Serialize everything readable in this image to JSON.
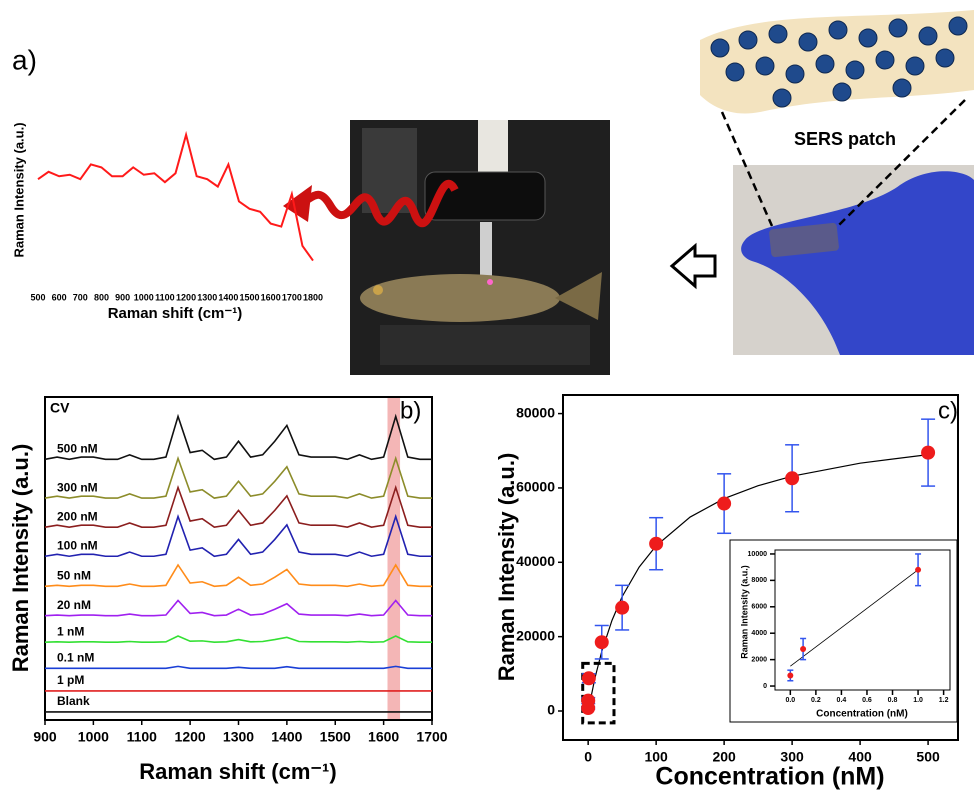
{
  "chart_data": [
    {
      "type": "line",
      "panel_label": "a)",
      "ylabel": "Raman Intensity (a.u.)",
      "xlabel": "Raman shift (cm⁻¹)",
      "xlim": [
        500,
        1800
      ],
      "xticks": [
        500,
        600,
        700,
        800,
        900,
        1000,
        1100,
        1200,
        1300,
        1400,
        1500,
        1600,
        1700,
        1800
      ],
      "ylim": [
        0,
        100
      ],
      "x": [
        500,
        550,
        600,
        650,
        700,
        750,
        800,
        850,
        900,
        950,
        1000,
        1050,
        1100,
        1150,
        1200,
        1250,
        1300,
        1350,
        1400,
        1450,
        1500,
        1550,
        1600,
        1650,
        1700,
        1750,
        1800
      ],
      "series": [
        {
          "color": "#ff1a1a",
          "values": [
            60,
            65,
            62,
            63,
            60,
            70,
            68,
            62,
            62,
            68,
            63,
            64,
            58,
            64,
            90,
            62,
            60,
            55,
            70,
            45,
            40,
            38,
            30,
            28,
            50,
            15,
            5
          ]
        }
      ]
    },
    {
      "type": "line",
      "panel_label": "b)",
      "annotation": "CV",
      "ylabel": "Raman Intensity (a.u.)",
      "xlabel": "Raman shift (cm⁻¹)",
      "xlim": [
        900,
        1700
      ],
      "xticks": [
        900,
        1000,
        1100,
        1200,
        1300,
        1400,
        1500,
        1600,
        1700
      ],
      "ylim": [
        0,
        100
      ],
      "highlight": [
        1608,
        1634
      ],
      "highlight_color": "#f4b6b6",
      "x": [
        900,
        925,
        950,
        975,
        1000,
        1025,
        1050,
        1075,
        1100,
        1125,
        1150,
        1175,
        1200,
        1225,
        1250,
        1275,
        1300,
        1325,
        1350,
        1375,
        1400,
        1425,
        1450,
        1475,
        1500,
        1525,
        1550,
        1575,
        1600,
        1625,
        1650,
        1675,
        1700
      ],
      "series": [
        {
          "name": "500 nM",
          "color": "#111111",
          "values": [
            80.7,
            81.4,
            80.7,
            81.4,
            81.4,
            80.7,
            80.7,
            82.1,
            80.7,
            80.7,
            81.4,
            94,
            82.8,
            83.5,
            80.7,
            81.4,
            86.3,
            81.4,
            82.1,
            86.3,
            91.2,
            82.1,
            81.4,
            81.4,
            81.4,
            80.7,
            82.1,
            80.7,
            81.4,
            94,
            81.4,
            80.7,
            80.7
          ]
        },
        {
          "name": "300 nM",
          "color": "#8c8c2a",
          "values": [
            68.7,
            69.3,
            68.7,
            69.3,
            69.3,
            68.7,
            68.7,
            70,
            68.7,
            68.7,
            69.3,
            81,
            70.6,
            71.3,
            68.7,
            69.3,
            73.9,
            69.3,
            70,
            73.9,
            78.4,
            70,
            69.3,
            69.3,
            69.3,
            68.7,
            70,
            68.7,
            69.3,
            81,
            69.3,
            68.7,
            68.7
          ]
        },
        {
          "name": "200 nM",
          "color": "#8b1e1e",
          "values": [
            59.7,
            60.3,
            59.7,
            60.3,
            60.3,
            59.7,
            59.7,
            61,
            59.7,
            59.7,
            60.3,
            72,
            61.6,
            62.3,
            59.7,
            60.3,
            64.9,
            60.3,
            61,
            64.9,
            69.4,
            61,
            60.3,
            60.3,
            60.3,
            59.7,
            61,
            59.7,
            60.3,
            72,
            60.3,
            59.7,
            59.7
          ]
        },
        {
          "name": "100 nM",
          "color": "#2222b0",
          "values": [
            50.7,
            51.3,
            50.7,
            51.3,
            51.3,
            50.7,
            50.7,
            52,
            50.7,
            50.7,
            51.3,
            63,
            52.6,
            53.3,
            50.7,
            51.3,
            55.9,
            51.3,
            52,
            55.9,
            60.4,
            52,
            51.3,
            51.3,
            51.3,
            50.7,
            52,
            50.7,
            51.3,
            63,
            51.3,
            50.7,
            50.7
          ]
        },
        {
          "name": "50 nM",
          "color": "#ff8c1a",
          "values": [
            41.4,
            41.7,
            41.4,
            41.7,
            41.7,
            41.4,
            41.4,
            42.1,
            41.4,
            41.4,
            41.7,
            48,
            42.4,
            42.8,
            41.4,
            41.7,
            44.2,
            41.7,
            42.1,
            44.2,
            46.6,
            42.1,
            41.7,
            41.7,
            41.7,
            41.4,
            42.1,
            41.4,
            41.7,
            48,
            41.7,
            41.4,
            41.4
          ]
        },
        {
          "name": "20 nM",
          "color": "#a020f0",
          "values": [
            32.3,
            32.5,
            32.3,
            32.5,
            32.5,
            32.3,
            32.3,
            32.8,
            32.3,
            32.3,
            32.5,
            37,
            33,
            33.3,
            32.3,
            32.5,
            34.3,
            32.5,
            32.8,
            34.3,
            36,
            32.8,
            32.5,
            32.5,
            32.5,
            32.3,
            32.8,
            32.3,
            32.5,
            37,
            32.5,
            32.3,
            32.3
          ]
        },
        {
          "name": "1 nM",
          "color": "#33e033",
          "values": [
            24.1,
            24.2,
            24.1,
            24.2,
            24.2,
            24.1,
            24.1,
            24.3,
            24.1,
            24.1,
            24.2,
            26,
            24.4,
            24.5,
            24.1,
            24.2,
            24.9,
            24.2,
            24.3,
            24.9,
            25.6,
            24.3,
            24.2,
            24.2,
            24.2,
            24.1,
            24.3,
            24.1,
            24.2,
            26,
            24.2,
            24.1,
            24.1
          ]
        },
        {
          "name": "0.1 nM",
          "color": "#1a3fd6",
          "values": [
            16,
            16,
            16,
            16,
            16,
            16,
            16,
            16,
            16,
            16,
            16,
            16.6,
            16,
            16,
            16,
            16,
            16.3,
            16,
            16,
            16,
            16.5,
            16,
            16,
            16,
            16,
            16,
            16,
            16,
            16,
            16.6,
            16,
            16,
            16
          ]
        },
        {
          "name": "1 pM",
          "color": "#e02020",
          "values": [
            9,
            9,
            9,
            9,
            9,
            9,
            9,
            9,
            9,
            9,
            9,
            9,
            9,
            9,
            9,
            9,
            9,
            9,
            9,
            9,
            9,
            9,
            9,
            9,
            9,
            9,
            9,
            9,
            9,
            9,
            9,
            9,
            9
          ]
        },
        {
          "name": "Blank",
          "color": "#111111",
          "values": [
            2.5,
            2.5,
            2.5,
            2.5,
            2.5,
            2.5,
            2.5,
            2.5,
            2.5,
            2.5,
            2.5,
            2.5,
            2.5,
            2.5,
            2.5,
            2.5,
            2.5,
            2.5,
            2.5,
            2.5,
            2.5,
            2.5,
            2.5,
            2.5,
            2.5,
            2.5,
            2.5,
            2.5,
            2.5,
            2.5,
            2.5,
            2.5,
            2.5
          ]
        }
      ]
    },
    {
      "type": "scatter",
      "panel_label": "c)",
      "ylabel": "Raman Intensity (a.u.)",
      "xlabel": "Concentration (nM)",
      "xlim": [
        -37,
        544
      ],
      "xticks": [
        0,
        100,
        200,
        300,
        400,
        500
      ],
      "ylim": [
        -7800,
        85000
      ],
      "yticks": [
        0,
        20000,
        40000,
        60000,
        80000
      ],
      "x": [
        0,
        0.1,
        1,
        20,
        50,
        100,
        200,
        300,
        500
      ],
      "values": [
        800,
        2800,
        8800,
        18500,
        27800,
        45000,
        55800,
        62600,
        69500
      ],
      "errors": [
        300,
        800,
        1200,
        4500,
        6000,
        7000,
        8000,
        9000,
        9000
      ],
      "color": "#ee1c1c",
      "error_color": "#3355ee",
      "fit": {
        "x": [
          0,
          10,
          20,
          35,
          50,
          75,
          100,
          150,
          200,
          250,
          300,
          400,
          500
        ],
        "values": [
          0,
          8889,
          16000,
          24348,
          30769,
          38710,
          44444,
          52174,
          57143,
          60606,
          63158,
          66667,
          68966
        ]
      },
      "zoom_box": {
        "x": [
          -8,
          38
        ],
        "y": [
          -3200,
          12800
        ]
      }
    },
    {
      "type": "scatter",
      "ylabel": "Raman Intensity (a.u.)",
      "xlabel": "Concentration (nM)",
      "xlim": [
        -0.12,
        1.25
      ],
      "xticks": [
        {
          "value": 0,
          "label": "0.0"
        },
        0.2,
        0.4,
        0.6,
        0.8,
        {
          "value": 1,
          "label": "1.0"
        },
        1.2
      ],
      "ylim": [
        -300,
        10300
      ],
      "yticks": [
        0,
        2000,
        4000,
        6000,
        8000,
        10000
      ],
      "x": [
        0,
        0.1,
        1
      ],
      "values": [
        800,
        2800,
        8800
      ],
      "errors": [
        400,
        800,
        1200
      ],
      "color": "#ee1c1c",
      "error_color": "#3355ee",
      "fit": {
        "x": [
          0,
          1
        ],
        "values": [
          1500,
          8800
        ]
      }
    }
  ],
  "labels": {
    "sers_patch": "SERS patch"
  }
}
